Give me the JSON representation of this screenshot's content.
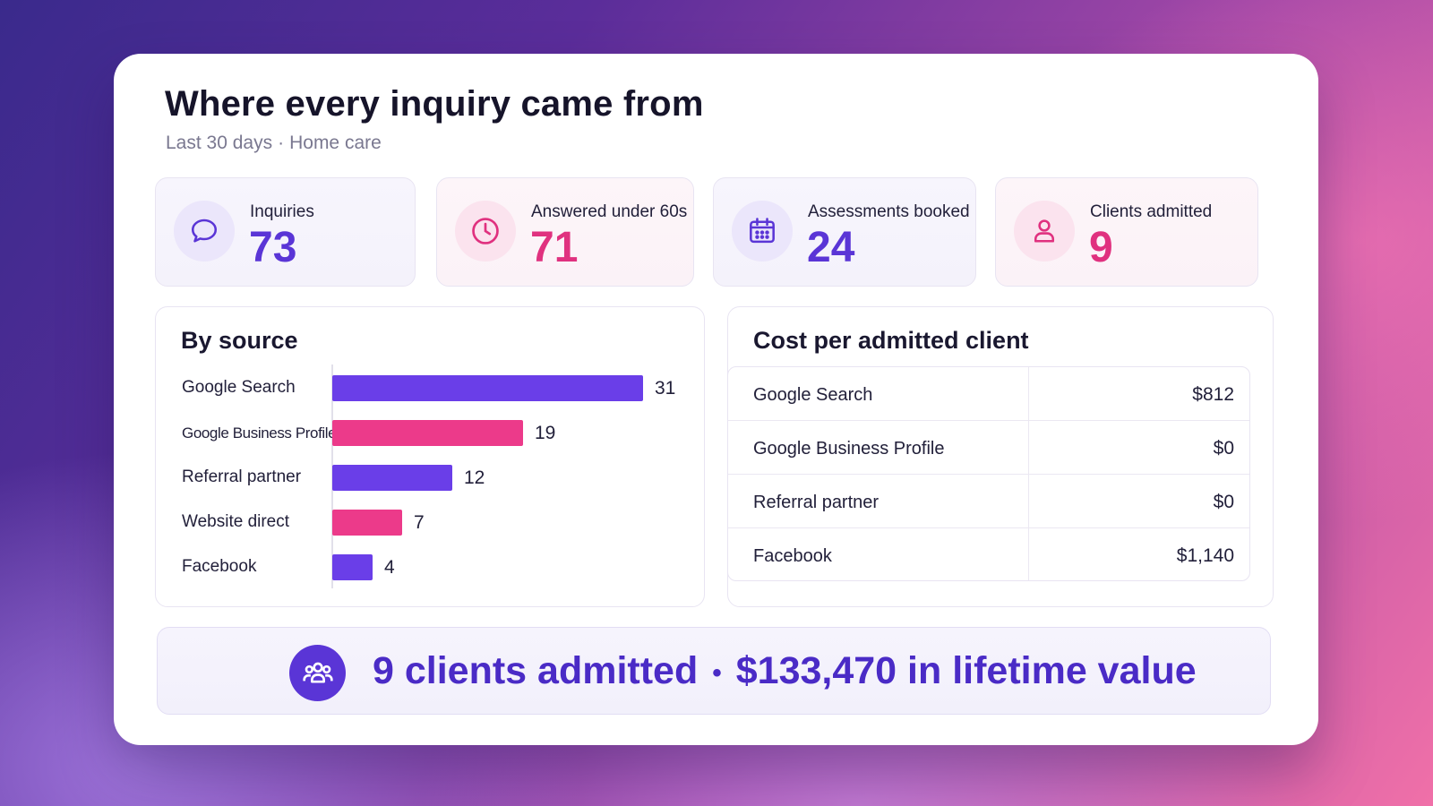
{
  "header": {
    "title": "Where every inquiry came from",
    "period": "Last 30 days",
    "separator": "·",
    "segment": "Home care"
  },
  "stats": [
    {
      "label": "Inquiries",
      "value": "73",
      "icon": "chat-bubble-icon",
      "accent": "#5a35d6"
    },
    {
      "label": "Answered under 60s",
      "value": "71",
      "icon": "clock-icon",
      "accent": "#e0317f"
    },
    {
      "label": "Assessments booked",
      "value": "24",
      "icon": "calendar-icon",
      "accent": "#5a35d6"
    },
    {
      "label": "Clients admitted",
      "value": "9",
      "icon": "person-icon",
      "accent": "#e0317f"
    }
  ],
  "by_source": {
    "title": "By source"
  },
  "chart_data": {
    "type": "bar",
    "orientation": "horizontal",
    "title": "By source",
    "categories": [
      "Google Search",
      "Google Business Profile",
      "Referral partner",
      "Website direct",
      "Facebook"
    ],
    "values": [
      31,
      19,
      12,
      7,
      4
    ],
    "colors": [
      "#6a3ee8",
      "#ec3a8a",
      "#6a3ee8",
      "#ec3a8a",
      "#6a3ee8"
    ],
    "xlim": [
      0,
      31
    ],
    "grid": false,
    "data_labels": true
  },
  "cost_per_client": {
    "title": "Cost per admitted client",
    "rows": [
      {
        "source": "Google Search",
        "cost": "$812"
      },
      {
        "source": "Google Business Profile",
        "cost": "$0"
      },
      {
        "source": "Referral partner",
        "cost": "$0"
      },
      {
        "source": "Facebook",
        "cost": "$1,140"
      }
    ]
  },
  "banner": {
    "clients": "9 clients admitted",
    "separator": "•",
    "lifetime_value": "$133,470 in lifetime value",
    "icon": "group-icon",
    "accent": "#5a35d6"
  }
}
